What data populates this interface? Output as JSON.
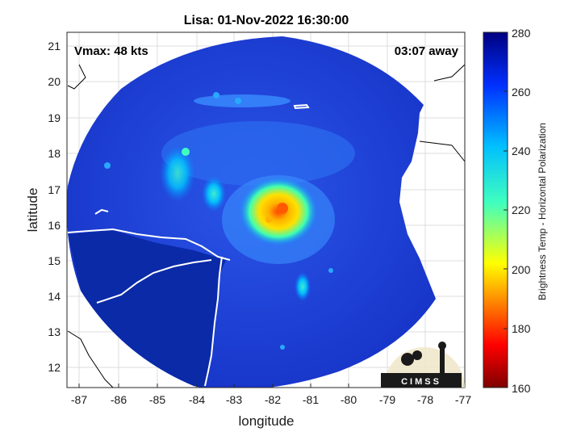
{
  "title": "Lisa: 01-Nov-2022 16:30:00",
  "vmax_text": "Vmax: 48 kts",
  "eta_text": "03:07 away",
  "xlabel": "longitude",
  "ylabel": "latitude",
  "x_ticks": [
    "-87",
    "-86",
    "-85",
    "-84",
    "-83",
    "-82",
    "-81",
    "-80",
    "-79",
    "-78",
    "-77"
  ],
  "y_ticks": [
    "21",
    "20",
    "19",
    "18",
    "17",
    "16",
    "15",
    "14",
    "13",
    "12"
  ],
  "colorbar": {
    "label": "Brightness Temp - Horizontal Polarization",
    "ticks": [
      "280",
      "260",
      "240",
      "220",
      "200",
      "180",
      "160"
    ],
    "range": [
      160,
      280
    ]
  },
  "logo_text": "CIMSS",
  "colors": {
    "background_scene": "#1a3fd0",
    "land": "#0a2aa8",
    "coastline": "#ffffff",
    "eye_core": "#ff5a00"
  }
}
